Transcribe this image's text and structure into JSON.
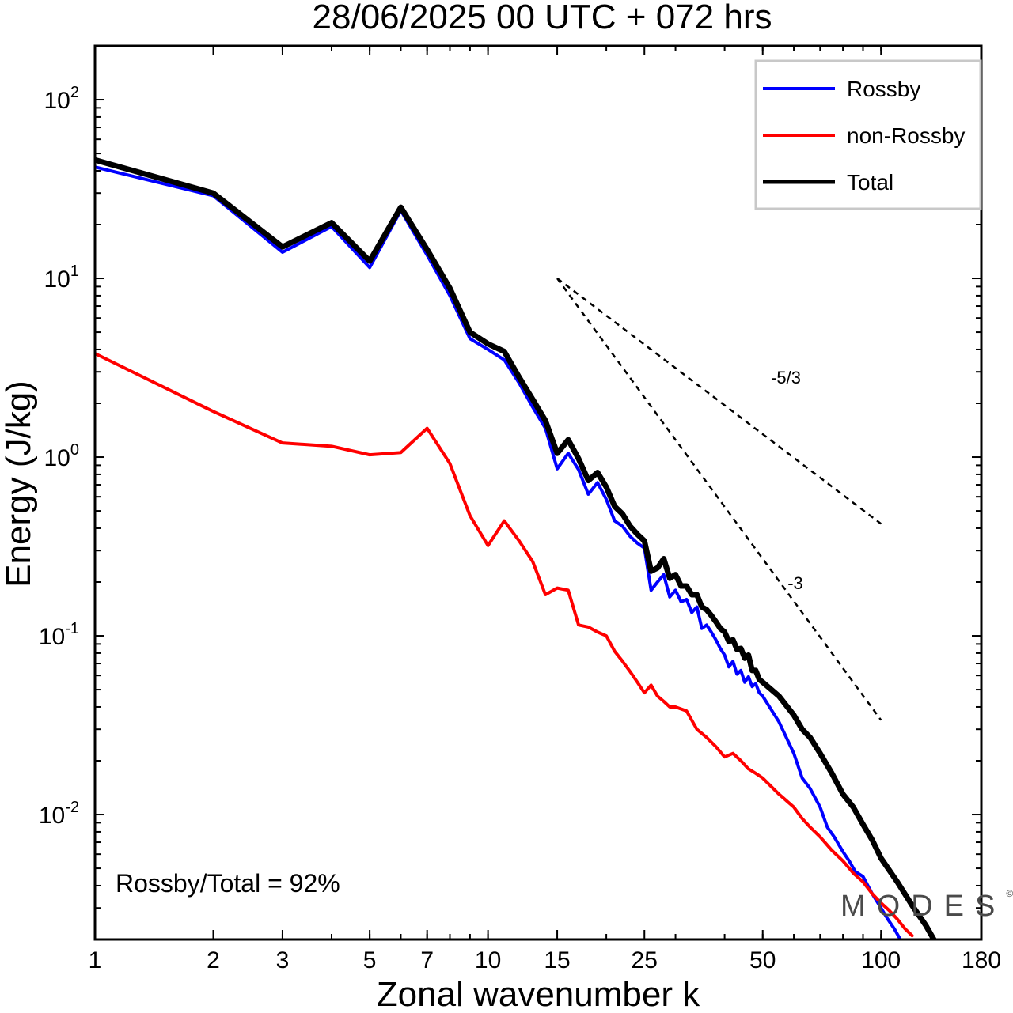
{
  "chart_data": {
    "type": "line",
    "title": "28/06/2025  00 UTC  + 072 hrs",
    "xlabel": "Zonal wavenumber k",
    "ylabel": "Energy (J/kg)",
    "x_scale": "log",
    "y_scale": "log",
    "xlim": [
      1,
      180
    ],
    "ylim": [
      0.002,
      200
    ],
    "x_ticks": [
      1,
      2,
      3,
      5,
      7,
      10,
      15,
      25,
      50,
      100,
      180
    ],
    "y_ticks": [
      {
        "base": "10",
        "exp": "-2",
        "value": 0.01
      },
      {
        "base": "10",
        "exp": "-1",
        "value": 0.1
      },
      {
        "base": "10",
        "exp": "0",
        "value": 1
      },
      {
        "base": "10",
        "exp": "1",
        "value": 10
      },
      {
        "base": "10",
        "exp": "2",
        "value": 100
      }
    ],
    "grid": false,
    "legend_position": "top-right",
    "series": [
      {
        "name": "Rossby",
        "color": "#0000ff",
        "x": [
          1,
          2,
          3,
          4,
          5,
          6,
          7,
          8,
          9,
          10,
          11,
          12,
          13,
          14,
          15,
          16,
          17,
          18,
          19,
          20,
          21,
          22,
          23,
          24,
          25,
          26,
          27,
          28,
          29,
          30,
          31,
          32,
          33,
          34,
          35,
          36,
          37,
          38,
          39,
          40,
          41,
          42,
          43,
          44,
          45,
          46,
          47,
          48,
          49,
          50,
          55,
          60,
          63,
          66,
          70,
          73,
          76,
          80,
          83,
          86,
          90,
          95,
          100,
          104,
          108,
          112
        ],
        "y": [
          42.0,
          29.0,
          14.0,
          19.5,
          11.5,
          24.0,
          13.5,
          8.0,
          4.6,
          4.0,
          3.5,
          2.6,
          1.9,
          1.45,
          0.86,
          1.05,
          0.85,
          0.62,
          0.72,
          0.58,
          0.44,
          0.41,
          0.36,
          0.33,
          0.31,
          0.18,
          0.2,
          0.22,
          0.165,
          0.18,
          0.155,
          0.16,
          0.135,
          0.145,
          0.11,
          0.115,
          0.105,
          0.095,
          0.085,
          0.078,
          0.067,
          0.072,
          0.061,
          0.064,
          0.055,
          0.059,
          0.052,
          0.054,
          0.048,
          0.046,
          0.033,
          0.022,
          0.016,
          0.014,
          0.011,
          0.0085,
          0.0075,
          0.0062,
          0.0055,
          0.0048,
          0.0045,
          0.0036,
          0.003,
          0.0026,
          0.0023,
          0.002
        ]
      },
      {
        "name": "non-Rossby",
        "color": "#ff0000",
        "x": [
          1,
          2,
          3,
          4,
          5,
          6,
          7,
          8,
          9,
          10,
          11,
          12,
          13,
          14,
          15,
          16,
          17,
          18,
          19,
          20,
          21,
          22,
          23,
          24,
          25,
          26,
          27,
          28,
          29,
          30,
          32,
          34,
          36,
          38,
          40,
          42,
          44,
          46,
          48,
          50,
          55,
          60,
          63,
          66,
          70,
          75,
          80,
          85,
          90,
          95,
          100,
          105,
          110,
          115,
          120
        ],
        "y": [
          3.8,
          1.8,
          1.2,
          1.15,
          1.03,
          1.06,
          1.45,
          0.92,
          0.47,
          0.32,
          0.44,
          0.34,
          0.26,
          0.17,
          0.185,
          0.18,
          0.115,
          0.112,
          0.105,
          0.1,
          0.082,
          0.072,
          0.063,
          0.055,
          0.048,
          0.053,
          0.046,
          0.043,
          0.04,
          0.04,
          0.038,
          0.03,
          0.027,
          0.024,
          0.021,
          0.022,
          0.02,
          0.018,
          0.017,
          0.016,
          0.013,
          0.011,
          0.0095,
          0.0085,
          0.0075,
          0.0063,
          0.0055,
          0.0047,
          0.0042,
          0.0036,
          0.0032,
          0.0029,
          0.0026,
          0.0023,
          0.0021
        ]
      },
      {
        "name": "Total",
        "color": "#000000",
        "x": [
          1,
          2,
          3,
          4,
          5,
          6,
          7,
          8,
          9,
          10,
          11,
          12,
          13,
          14,
          15,
          16,
          17,
          18,
          19,
          20,
          21,
          22,
          23,
          24,
          25,
          26,
          27,
          28,
          29,
          30,
          31,
          32,
          33,
          34,
          35,
          36,
          37,
          38,
          39,
          40,
          41,
          42,
          43,
          44,
          45,
          46,
          47,
          48,
          49,
          50,
          55,
          60,
          63,
          66,
          70,
          75,
          80,
          85,
          90,
          95,
          100,
          110,
          120,
          130,
          140,
          150
        ],
        "y": [
          46.0,
          30.0,
          15.0,
          20.5,
          12.5,
          25.0,
          14.5,
          8.8,
          5.0,
          4.3,
          3.9,
          2.8,
          2.1,
          1.6,
          1.05,
          1.25,
          0.98,
          0.74,
          0.82,
          0.68,
          0.53,
          0.48,
          0.41,
          0.37,
          0.34,
          0.23,
          0.24,
          0.27,
          0.21,
          0.22,
          0.19,
          0.19,
          0.17,
          0.17,
          0.145,
          0.14,
          0.13,
          0.12,
          0.11,
          0.105,
          0.093,
          0.095,
          0.084,
          0.085,
          0.075,
          0.078,
          0.064,
          0.064,
          0.057,
          0.055,
          0.046,
          0.036,
          0.03,
          0.027,
          0.022,
          0.017,
          0.013,
          0.011,
          0.0088,
          0.0072,
          0.0057,
          0.0042,
          0.0031,
          0.0024,
          0.0018,
          0.0015
        ]
      }
    ],
    "reference_lines": [
      {
        "label": "-5/3",
        "slope": -1.6667,
        "x_start": 15,
        "y_start": 10,
        "x_end": 100
      },
      {
        "label": "-3",
        "slope": -3,
        "x_start": 15,
        "y_start": 10,
        "x_end": 100
      }
    ],
    "annotation": "Rossby/Total = 92%",
    "watermark": "MODES",
    "watermark_mark": "©"
  }
}
